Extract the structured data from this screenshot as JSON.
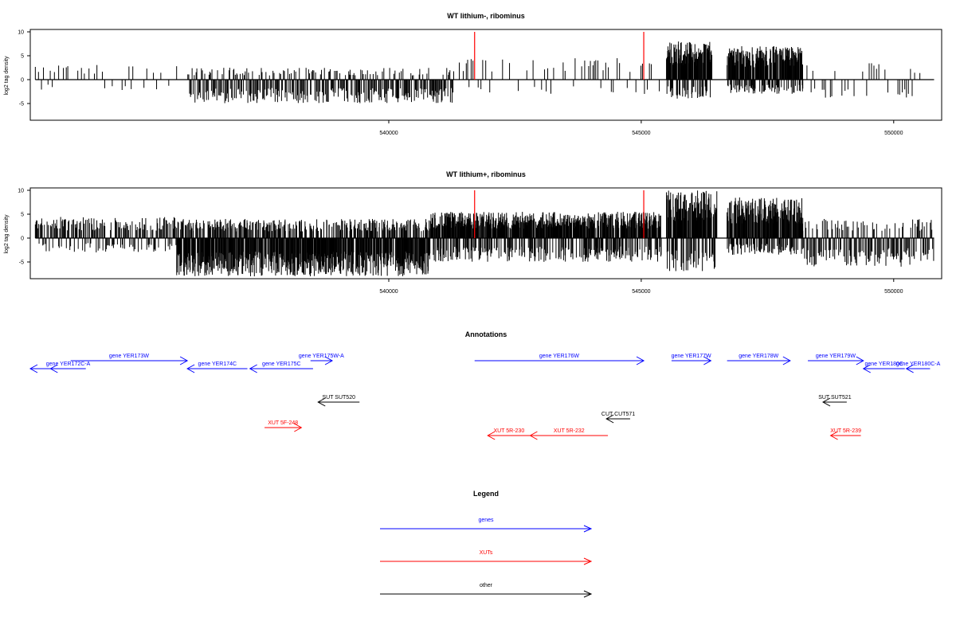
{
  "panels": [
    {
      "title": "WT lithium-, ribominus",
      "ylabel": "log2 tag density",
      "yticks": [
        -5,
        0,
        5,
        10
      ],
      "ylim": [
        -8.5,
        10.5
      ],
      "xticks": [
        540000,
        545000,
        550000
      ],
      "xlim": [
        532900,
        550950
      ],
      "highlight_color": "#ff0000",
      "highlights": [
        541700,
        545050
      ]
    },
    {
      "title": "WT lithium+, ribominus",
      "ylabel": "log2 tag density",
      "yticks": [
        -5,
        0,
        5,
        10
      ],
      "ylim": [
        -8.5,
        10.5
      ],
      "xticks": [
        540000,
        545000,
        550000
      ],
      "xlim": [
        532900,
        550950
      ],
      "highlight_color": "#ff0000",
      "highlights": [
        541700,
        545050
      ]
    }
  ],
  "chart_data": [
    {
      "type": "bar",
      "title": "WT lithium-, ribominus",
      "ylabel": "log2 tag density",
      "xlim": [
        532900,
        550950
      ],
      "ylim": [
        -8.5,
        10.5
      ],
      "grid": false,
      "segments": [
        {
          "x": [
            536000,
            536020
          ],
          "y": [
            0,
            0
          ]
        },
        {
          "start": 533000,
          "end": 535800,
          "plus_max": 3.5,
          "minus_max": 2.5,
          "density": "sparse"
        },
        {
          "start": 536020,
          "end": 541300,
          "plus_max": 2.5,
          "minus_max": 5.0,
          "density": "medium"
        },
        {
          "start": 541300,
          "end": 545400,
          "plus_max": 4.5,
          "minus_max": 3.0,
          "density": "sparse"
        },
        {
          "start": 545500,
          "end": 546400,
          "plus_max": 8.0,
          "minus_max": 4.0,
          "density": "dense"
        },
        {
          "start": 546700,
          "end": 548200,
          "plus_max": 7.0,
          "minus_max": 3.0,
          "density": "dense"
        },
        {
          "start": 548200,
          "end": 550800,
          "plus_max": 3.5,
          "minus_max": 4.0,
          "density": "sparse"
        }
      ]
    },
    {
      "type": "bar",
      "title": "WT lithium+, ribominus",
      "ylabel": "log2 tag density",
      "xlim": [
        532900,
        550950
      ],
      "ylim": [
        -8.5,
        10.5
      ],
      "grid": false,
      "segments": [
        {
          "start": 533000,
          "end": 535800,
          "plus_max": 4.5,
          "minus_max": 3.0,
          "density": "medium"
        },
        {
          "start": 535800,
          "end": 540800,
          "plus_max": 4.0,
          "minus_max": 8.0,
          "density": "dense"
        },
        {
          "start": 540800,
          "end": 545400,
          "plus_max": 5.5,
          "minus_max": 5.0,
          "density": "dense"
        },
        {
          "start": 545500,
          "end": 546500,
          "plus_max": 10.0,
          "minus_max": 7.0,
          "density": "dense"
        },
        {
          "start": 546700,
          "end": 548200,
          "plus_max": 8.5,
          "minus_max": 3.5,
          "density": "dense"
        },
        {
          "start": 548200,
          "end": 550800,
          "plus_max": 4.0,
          "minus_max": 6.0,
          "density": "medium"
        }
      ]
    }
  ],
  "annotations": {
    "title": "Annotations",
    "items": [
      {
        "label": "gene YER172C-A",
        "class": "gene",
        "dir": "left",
        "start": 532900,
        "end": 533650
      },
      {
        "label": "gene YER172C-A",
        "class": "gene",
        "dir": "left",
        "start": 533300,
        "end": 534000,
        "show_label": true
      },
      {
        "label": "gene YER173W",
        "class": "gene",
        "dir": "right",
        "start": 533700,
        "end": 536010,
        "show_label": true
      },
      {
        "label": "gene YER174C",
        "class": "gene",
        "dir": "left",
        "start": 536010,
        "end": 537200,
        "show_label": true
      },
      {
        "label": "gene YER175C",
        "class": "gene",
        "dir": "left",
        "start": 537250,
        "end": 538500,
        "show_label": true
      },
      {
        "label": "gene YER175W-A",
        "class": "gene",
        "dir": "right",
        "start": 538450,
        "end": 538880,
        "show_label": true
      },
      {
        "label": "gene YER176W",
        "class": "gene",
        "dir": "right",
        "start": 541700,
        "end": 545050,
        "show_label": true
      },
      {
        "label": "gene YER177W",
        "class": "gene",
        "dir": "right",
        "start": 545600,
        "end": 546380,
        "show_label": true
      },
      {
        "label": "gene YER178W",
        "class": "gene",
        "dir": "right",
        "start": 546700,
        "end": 547950,
        "show_label": true
      },
      {
        "label": "gene YER179W",
        "class": "gene",
        "dir": "right",
        "start": 548300,
        "end": 549400,
        "show_label": true
      },
      {
        "label": "gene YER180C",
        "class": "gene",
        "dir": "left",
        "start": 549400,
        "end": 550220,
        "show_label": true
      },
      {
        "label": "gene YER180C-A",
        "class": "gene",
        "dir": "left",
        "start": 550250,
        "end": 550720,
        "show_label": true
      },
      {
        "label": "SUT SUT520",
        "class": "other",
        "dir": "left",
        "start": 538600,
        "end": 539420,
        "show_label": true
      },
      {
        "label": "SUT SUT521",
        "class": "other",
        "dir": "left",
        "start": 548600,
        "end": 549070,
        "show_label": true
      },
      {
        "label": "CUT CUT571",
        "class": "other",
        "dir": "left",
        "start": 544310,
        "end": 544780,
        "show_label": true
      },
      {
        "label": "XUT 5F-248",
        "class": "xut",
        "dir": "right",
        "start": 537540,
        "end": 538270,
        "show_label": true
      },
      {
        "label": "XUT 5R-230",
        "class": "xut",
        "dir": "left",
        "start": 541960,
        "end": 542800,
        "show_label": true
      },
      {
        "label": "XUT 5R-232",
        "class": "xut",
        "dir": "left",
        "start": 542800,
        "end": 544340,
        "show_label": true
      },
      {
        "label": "XUT 5R-239",
        "class": "xut",
        "dir": "left",
        "start": 548750,
        "end": 549350,
        "show_label": true
      }
    ]
  },
  "legend": {
    "title": "Legend",
    "entries": [
      {
        "label": "genes",
        "color": "#0000ff"
      },
      {
        "label": "XUTs",
        "color": "#ff0000"
      },
      {
        "label": "other",
        "color": "#000000"
      }
    ]
  },
  "colors": {
    "gene": "#0000ff",
    "xut": "#ff0000",
    "other": "#000000",
    "bars": "#000000"
  }
}
